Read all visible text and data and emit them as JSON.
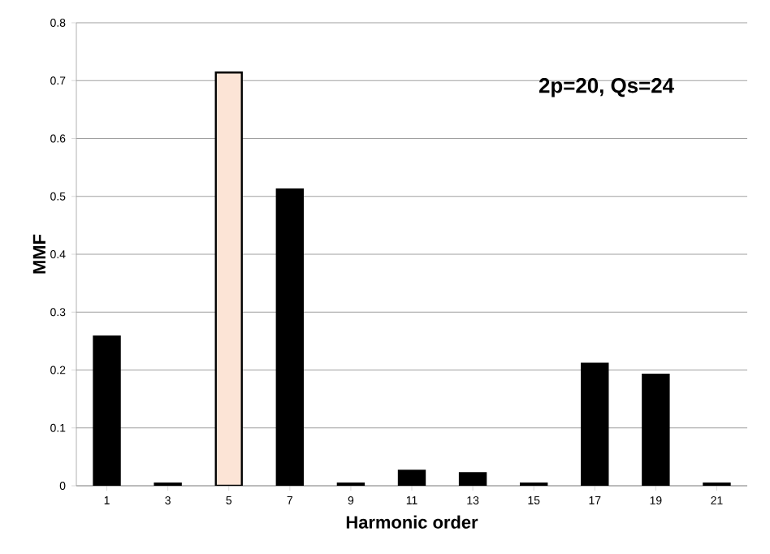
{
  "chart_data": {
    "type": "bar",
    "xlabel": "Harmonic order",
    "ylabel": "MMF",
    "categories": [
      "1",
      "3",
      "5",
      "7",
      "9",
      "11",
      "13",
      "15",
      "17",
      "19",
      "21"
    ],
    "values": [
      0.258,
      0.004,
      0.714,
      0.512,
      0.004,
      0.026,
      0.022,
      0.004,
      0.211,
      0.192,
      0.004
    ],
    "colors": [
      "#000000",
      "#000000",
      "#fce4d6",
      "#000000",
      "#000000",
      "#000000",
      "#000000",
      "#000000",
      "#000000",
      "#000000",
      "#000000"
    ],
    "ylim": [
      0,
      0.8
    ],
    "yticks": [
      0,
      0.1,
      0.2,
      0.3,
      0.4,
      0.5,
      0.6,
      0.7,
      0.8
    ],
    "grid": "y",
    "annotations": [
      "2p=20, Qs=24"
    ]
  }
}
